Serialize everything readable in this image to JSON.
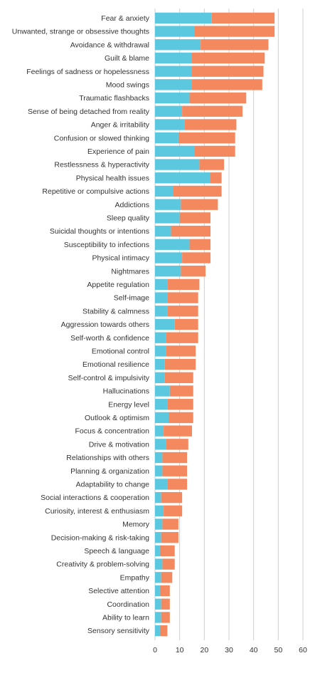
{
  "chart_data": {
    "type": "bar",
    "orientation": "horizontal",
    "stacked": true,
    "grid": true,
    "xlim": [
      0,
      60
    ],
    "x_ticks": [
      "0",
      "10",
      "20",
      "30",
      "40",
      "50",
      "60"
    ],
    "colors": {
      "series_a": "#5bc8e0",
      "series_b": "#f4885e"
    },
    "categories": [
      "Fear & anxiety",
      "Unwanted, strange or obsessive thoughts",
      "Avoidance & withdrawal",
      "Guilt & blame",
      "Feelings of sadness or hopelessness",
      "Mood swings",
      "Traumatic flashbacks",
      "Sense of being detached from reality",
      "Anger & irritability",
      "Confusion or slowed thinking",
      "Experience of pain",
      "Restlessness & hyperactivity",
      "Physical health issues",
      "Repetitive or compulsive actions",
      "Addictions",
      "Sleep quality",
      "Suicidal thoughts or intentions",
      "Susceptibility to infections",
      "Physical intimacy",
      "Nightmares",
      "Appetite regulation",
      "Self-image",
      "Stability & calmness",
      "Aggression towards others",
      "Self-worth & confidence",
      "Emotional control",
      "Emotional resilience",
      "Self-control & impulsivity",
      "Hallucinations",
      "Energy level",
      "Outlook & optimism",
      "Focus & concentration",
      "Drive & motivation",
      "Relationships with others",
      "Planning & organization",
      "Adaptability to change",
      "Social interactions & cooperation",
      "Curiosity, interest & enthusiasm",
      "Memory",
      "Decision-making & risk-taking",
      "Speech & language",
      "Creativity & problem-solving",
      "Empathy",
      "Selective attention",
      "Coordination",
      "Ability to learn",
      "Sensory sensitivity"
    ],
    "series": [
      {
        "values": [
          23,
          16,
          18.5,
          15,
          15,
          15,
          14,
          11,
          12,
          9.5,
          16,
          18,
          22.5,
          7.5,
          10.5,
          10,
          6.5,
          14,
          11,
          10.5,
          5,
          5,
          5,
          8,
          4.5,
          4.5,
          4,
          4,
          6,
          5,
          5.5,
          3.5,
          4.5,
          3,
          3,
          5,
          2.5,
          3.5,
          3,
          2.5,
          2,
          3,
          2.5,
          2,
          2.5,
          2.5,
          2
        ]
      },
      {
        "values": [
          25.5,
          32.5,
          27.5,
          29.5,
          29,
          28.5,
          23,
          24.5,
          21,
          23,
          16.5,
          10,
          4.5,
          19.5,
          15,
          12.5,
          16,
          8.5,
          11.5,
          10,
          13,
          12.5,
          12.5,
          9.5,
          13,
          12,
          12.5,
          11.5,
          9.5,
          10.5,
          10,
          11.5,
          9,
          10,
          10,
          8,
          8.5,
          7.5,
          6.5,
          7,
          6,
          5,
          4.5,
          4,
          3.5,
          3.5,
          3
        ]
      }
    ]
  }
}
